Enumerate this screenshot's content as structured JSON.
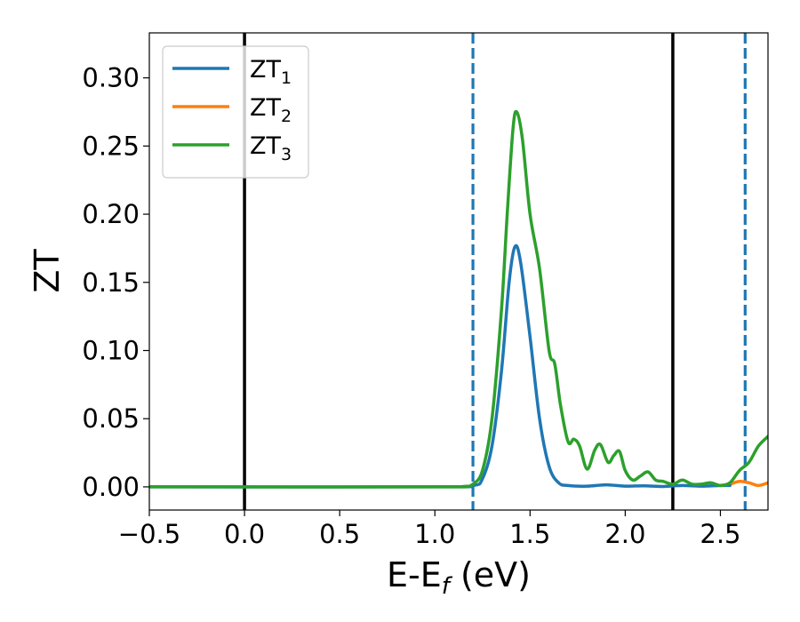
{
  "chart_data": {
    "type": "line",
    "title": "",
    "xlabel": "E-E",
    "xlabel_sub": "f",
    "xlabel_unit": " (eV)",
    "ylabel": "ZT",
    "xlim": [
      -0.5,
      2.75
    ],
    "ylim": [
      -0.017,
      0.333
    ],
    "xticks": [
      -0.5,
      0.0,
      0.5,
      1.0,
      1.5,
      2.0,
      2.5
    ],
    "xtick_labels": [
      "−0.5",
      "0.0",
      "0.5",
      "1.0",
      "1.5",
      "2.0",
      "2.5"
    ],
    "yticks": [
      0.0,
      0.05,
      0.1,
      0.15,
      0.2,
      0.25,
      0.3
    ],
    "ytick_labels": [
      "0.00",
      "0.05",
      "0.10",
      "0.15",
      "0.20",
      "0.25",
      "0.30"
    ],
    "grid": false,
    "legend_position": "upper left",
    "vlines": [
      {
        "x": 0.0,
        "style": "solid",
        "color": "#000000"
      },
      {
        "x": 2.25,
        "style": "solid",
        "color": "#000000"
      },
      {
        "x": 1.2,
        "style": "dashed",
        "color": "#1f77b4"
      },
      {
        "x": 2.63,
        "style": "dashed",
        "color": "#1f77b4"
      }
    ],
    "series": [
      {
        "name": "ZT",
        "name_sub": "1",
        "color": "#1f77b4",
        "x": [
          -0.5,
          1.0,
          1.2,
          1.25,
          1.3,
          1.35,
          1.39,
          1.42,
          1.45,
          1.5,
          1.55,
          1.6,
          1.65,
          1.7,
          1.8,
          1.9,
          2.0,
          2.1,
          2.2,
          2.3,
          2.4,
          2.5,
          2.55
        ],
        "y": [
          0.0,
          0.0,
          0.001,
          0.006,
          0.03,
          0.085,
          0.15,
          0.176,
          0.165,
          0.11,
          0.05,
          0.015,
          0.003,
          0.001,
          0.0005,
          0.0015,
          0.0005,
          0.0008,
          0.0003,
          0.001,
          0.0005,
          0.001,
          0.001
        ]
      },
      {
        "name": "ZT",
        "name_sub": "2",
        "color": "#ff7f0e",
        "x": [
          2.5,
          2.55,
          2.6,
          2.65,
          2.7,
          2.75
        ],
        "y": [
          0.001,
          0.002,
          0.004,
          0.003,
          0.001,
          0.003
        ]
      },
      {
        "name": "ZT",
        "name_sub": "3",
        "color": "#2ca02c",
        "x": [
          -0.5,
          1.0,
          1.15,
          1.2,
          1.25,
          1.3,
          1.35,
          1.38,
          1.41,
          1.43,
          1.46,
          1.5,
          1.55,
          1.6,
          1.63,
          1.66,
          1.7,
          1.73,
          1.76,
          1.8,
          1.84,
          1.87,
          1.91,
          1.94,
          1.97,
          2.0,
          2.04,
          2.08,
          2.12,
          2.16,
          2.2,
          2.25,
          2.3,
          2.35,
          2.4,
          2.45,
          2.5,
          2.55,
          2.6,
          2.65,
          2.7,
          2.75
        ],
        "y": [
          0.0,
          0.0,
          0.0003,
          0.002,
          0.012,
          0.05,
          0.13,
          0.2,
          0.262,
          0.275,
          0.255,
          0.2,
          0.16,
          0.1,
          0.09,
          0.06,
          0.033,
          0.035,
          0.03,
          0.013,
          0.027,
          0.031,
          0.018,
          0.023,
          0.026,
          0.012,
          0.005,
          0.008,
          0.011,
          0.005,
          0.004,
          0.002,
          0.005,
          0.002,
          0.002,
          0.003,
          0.001,
          0.003,
          0.012,
          0.018,
          0.03,
          0.037
        ]
      }
    ]
  }
}
